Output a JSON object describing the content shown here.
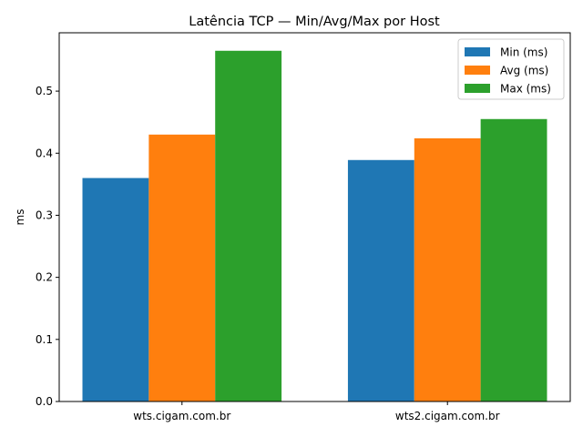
{
  "chart_data": {
    "type": "bar",
    "title": "Latência TCP — Min/Avg/Max por Host",
    "xlabel": "",
    "ylabel": "ms",
    "categories": [
      "wts.cigam.com.br",
      "wts2.cigam.com.br"
    ],
    "series": [
      {
        "name": "Min (ms)",
        "color": "#1f77b4",
        "values": [
          0.36,
          0.389
        ]
      },
      {
        "name": "Avg (ms)",
        "color": "#ff7f0e",
        "values": [
          0.43,
          0.424
        ]
      },
      {
        "name": "Max (ms)",
        "color": "#2ca02c",
        "values": [
          0.565,
          0.455
        ]
      }
    ],
    "ylim": [
      0,
      0.594
    ],
    "yticks": [
      0.0,
      0.1,
      0.2,
      0.3,
      0.4,
      0.5
    ],
    "ytick_labels": [
      "0.0",
      "0.1",
      "0.2",
      "0.3",
      "0.4",
      "0.5"
    ],
    "grid": false,
    "legend_position": "top-right"
  }
}
